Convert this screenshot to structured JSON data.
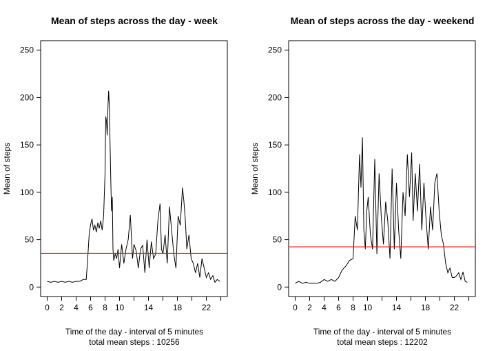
{
  "chart_data": [
    {
      "type": "line",
      "title": "Mean of steps across the day - week",
      "xlabel": "Time of the day - interval of 5 minutes",
      "subtitle": "total mean steps : 10256",
      "ylabel": "Mean of steps",
      "xlim": [
        -0.9,
        24.9
      ],
      "ylim": [
        -10,
        260
      ],
      "x_ticks": [
        "0",
        "2",
        "4",
        "6",
        "8",
        "10",
        "12",
        "14",
        "16",
        "18",
        "20",
        "22",
        "24"
      ],
      "x_tick_labels": [
        "0",
        "2",
        "4",
        "6",
        "8",
        "10",
        "",
        "14",
        "",
        "18",
        "",
        "22",
        ""
      ],
      "y_ticks": [
        "0",
        "50",
        "100",
        "150",
        "200",
        "250"
      ],
      "mean_line": {
        "value": 35.6,
        "color": "#ff0000"
      },
      "line_color": "#000000",
      "series": [
        {
          "x": [
            0,
            0.5,
            1,
            1.5,
            2,
            2.5,
            3,
            3.5,
            4,
            4.5,
            5,
            5.4,
            5.6,
            5.8,
            6,
            6.2,
            6.4,
            6.6,
            6.8,
            7,
            7.2,
            7.4,
            7.6,
            7.8,
            8,
            8.1,
            8.2,
            8.3,
            8.4,
            8.5,
            8.6,
            8.7,
            8.8,
            8.9,
            9,
            9.1,
            9.2,
            9.4,
            9.6,
            9.8,
            10,
            10.3,
            10.6,
            10.9,
            11.2,
            11.5,
            11.8,
            12,
            12.3,
            12.6,
            12.9,
            13.2,
            13.5,
            13.8,
            14.1,
            14.4,
            14.7,
            15,
            15.3,
            15.6,
            15.8,
            16,
            16.3,
            16.6,
            16.9,
            17.2,
            17.5,
            17.8,
            18.1,
            18.4,
            18.7,
            18.9,
            19.1,
            19.3,
            19.6,
            19.9,
            20.2,
            20.5,
            20.8,
            21.1,
            21.4,
            21.7,
            22,
            22.3,
            22.6,
            22.9,
            23.2,
            23.5,
            23.9
          ],
          "y": [
            6,
            5,
            6,
            5,
            6,
            5,
            6,
            5,
            6,
            6,
            8,
            8,
            30,
            55,
            66,
            72,
            60,
            65,
            58,
            68,
            62,
            70,
            60,
            75,
            120,
            180,
            175,
            160,
            190,
            207,
            190,
            150,
            110,
            80,
            95,
            40,
            28,
            35,
            30,
            40,
            20,
            45,
            25,
            40,
            50,
            76,
            30,
            45,
            38,
            20,
            40,
            44,
            15,
            50,
            20,
            48,
            30,
            35,
            70,
            88,
            40,
            35,
            55,
            25,
            85,
            60,
            35,
            20,
            75,
            65,
            105,
            90,
            70,
            40,
            55,
            30,
            25,
            15,
            25,
            10,
            30,
            20,
            10,
            15,
            8,
            12,
            5,
            8,
            6
          ]
        }
      ]
    },
    {
      "type": "line",
      "title": "Mean of steps across the day - weekend",
      "xlabel": "Time of the day - interval of 5 minutes",
      "subtitle": "total mean steps : 12202",
      "ylabel": "Mean of steps",
      "xlim": [
        -0.9,
        24.9
      ],
      "ylim": [
        -10,
        260
      ],
      "x_ticks": [
        "0",
        "2",
        "4",
        "6",
        "8",
        "10",
        "12",
        "14",
        "16",
        "18",
        "20",
        "22",
        "24"
      ],
      "x_tick_labels": [
        "0",
        "2",
        "4",
        "6",
        "8",
        "10",
        "",
        "14",
        "",
        "18",
        "",
        "22",
        ""
      ],
      "y_ticks": [
        "0",
        "50",
        "100",
        "150",
        "200",
        "250"
      ],
      "mean_line": {
        "value": 42.4,
        "color": "#ff0000"
      },
      "line_color": "#000000",
      "series": [
        {
          "x": [
            0,
            0.5,
            1,
            1.5,
            2,
            2.5,
            3,
            3.5,
            4,
            4.5,
            5,
            5.5,
            6,
            6.5,
            7,
            7.5,
            8,
            8.3,
            8.6,
            8.9,
            9.1,
            9.3,
            9.5,
            9.7,
            9.9,
            10.1,
            10.4,
            10.7,
            11,
            11.3,
            11.6,
            11.9,
            12.2,
            12.5,
            12.8,
            13.1,
            13.4,
            13.7,
            14,
            14.3,
            14.6,
            14.9,
            15.2,
            15.5,
            15.8,
            16.1,
            16.3,
            16.6,
            16.9,
            17.2,
            17.5,
            17.8,
            18.1,
            18.4,
            18.7,
            19,
            19.3,
            19.6,
            19.9,
            20.2,
            20.5,
            20.8,
            21.1,
            21.4,
            21.7,
            22,
            22.3,
            22.6,
            22.9,
            23.2,
            23.5,
            23.8
          ],
          "y": [
            4,
            6,
            4,
            5,
            4,
            4,
            4,
            5,
            8,
            6,
            8,
            6,
            10,
            18,
            22,
            28,
            30,
            75,
            60,
            140,
            105,
            158,
            60,
            40,
            80,
            95,
            55,
            40,
            135,
            35,
            120,
            75,
            45,
            90,
            70,
            30,
            125,
            40,
            110,
            60,
            30,
            100,
            75,
            140,
            95,
            142,
            70,
            120,
            80,
            130,
            60,
            110,
            70,
            40,
            85,
            60,
            110,
            120,
            80,
            55,
            45,
            25,
            15,
            20,
            10,
            10,
            12,
            15,
            8,
            16,
            6,
            5
          ]
        }
      ]
    }
  ]
}
